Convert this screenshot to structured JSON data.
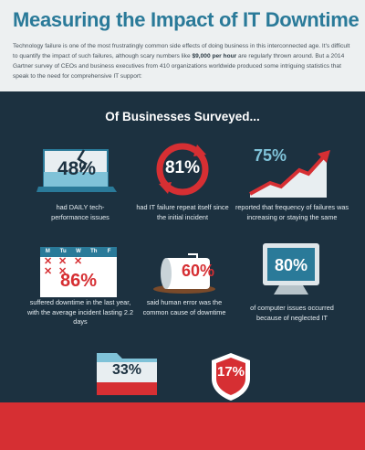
{
  "title": "Measuring the Impact of IT Downtime",
  "intro_before": "Technology failure is one of the most frustratingly common side effects of doing business in this interconnected age. It's difficult to quantify the impact of such failures, although scary numbers like ",
  "intro_bold": "$9,000 per hour",
  "intro_after": " are regularly thrown around. But a 2014 Gartner survey of CEOs and business executives from 410 organizations worldwide produced some intriguing statistics that speak to the need for comprehensive IT support:",
  "section_heading": "Of Businesses Surveyed...",
  "colors": {
    "blue": "#2a7a99",
    "navy": "#1c3140",
    "red": "#d62f33",
    "light_blue": "#7fc2d8",
    "white": "#ffffff"
  },
  "icons": [
    "cracked-screen-icon",
    "circular-arrows-icon",
    "rising-arrow-icon",
    "calendar-icon",
    "spilled-coffee-icon",
    "crt-monitor-icon",
    "folder-icon",
    "shield-icon"
  ],
  "chart_data": {
    "type": "table",
    "title": "Of Businesses Surveyed...",
    "columns": [
      "percent",
      "statement"
    ],
    "stats": [
      {
        "label": "48%",
        "value": 48,
        "caption": "had DAILY tech-performance issues"
      },
      {
        "label": "81%",
        "value": 81,
        "caption": "had IT failure repeat itself since the initial incident"
      },
      {
        "label": "75%",
        "value": 75,
        "caption": "reported that frequency of failures was increasing or staying the same"
      },
      {
        "label": "86%",
        "value": 86,
        "caption": "suffered downtime in the last year, with the average incident lasting 2.2 days"
      },
      {
        "label": "60%",
        "value": 60,
        "caption": "said human error was the common cause of downtime"
      },
      {
        "label": "80%",
        "value": 80,
        "caption": "of computer issues occurred because of neglected IT"
      },
      {
        "label": "33%",
        "value": 33,
        "caption": ""
      },
      {
        "label": "17%",
        "value": 17,
        "caption": ""
      }
    ]
  },
  "calendar_days": [
    "M",
    "Tu",
    "W",
    "Th",
    "F"
  ]
}
